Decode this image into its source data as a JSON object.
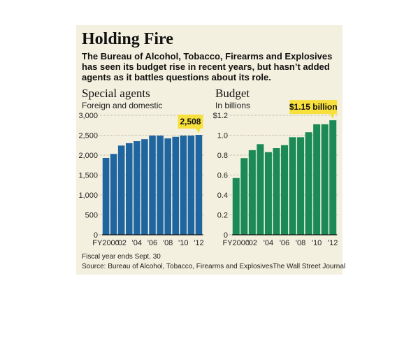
{
  "title": "Holding Fire",
  "intro": "The Bureau of Alcohol, Tobacco, Firearms and Explosives has seen its budget rise in recent years, but hasn’t added agents as it battles questions about its role.",
  "note": "Fiscal year ends Sept. 30",
  "source": "Source: Bureau of Alcohol, Tobacco, Firearms and Explosives",
  "credit": "The Wall Street Journal",
  "colors": {
    "panel": "#f4f0df",
    "agents_bar": "#1f66a0",
    "budget_bar": "#1b8a57",
    "callout": "#f7e03c",
    "grid": "#bdb8a8"
  },
  "chart_data": [
    {
      "type": "bar",
      "title": "Special agents",
      "subtitle": "Foreign and domestic",
      "categories": [
        "FY2000",
        "'01",
        "'02",
        "'03",
        "'04",
        "'05",
        "'06",
        "'07",
        "'08",
        "'09",
        "'10",
        "'11",
        "'12"
      ],
      "x_tick_labels": [
        "FY2000",
        "",
        "'02",
        "",
        "'04",
        "",
        "'06",
        "",
        "'08",
        "",
        "'10",
        "",
        "'12"
      ],
      "values": [
        1930,
        2030,
        2240,
        2300,
        2350,
        2400,
        2490,
        2490,
        2420,
        2460,
        2490,
        2490,
        2508
      ],
      "ylim": [
        0,
        3000
      ],
      "y_ticks": [
        0,
        500,
        1000,
        1500,
        2000,
        2500,
        3000
      ],
      "y_tick_labels": [
        "0",
        "500",
        "1,000",
        "1,500",
        "2,000",
        "2,500",
        "3,000"
      ],
      "callout": {
        "label": "2,508",
        "category": "'12"
      },
      "grid": true
    },
    {
      "type": "bar",
      "title": "Budget",
      "subtitle": "In billions",
      "categories": [
        "FY2000",
        "'01",
        "'02",
        "'03",
        "'04",
        "'05",
        "'06",
        "'07",
        "'08",
        "'09",
        "'10",
        "'11",
        "'12"
      ],
      "x_tick_labels": [
        "FY2000",
        "",
        "'02",
        "",
        "'04",
        "",
        "'06",
        "",
        "'08",
        "",
        "'10",
        "",
        "'12"
      ],
      "values": [
        0.57,
        0.77,
        0.85,
        0.91,
        0.83,
        0.87,
        0.9,
        0.98,
        0.98,
        1.03,
        1.11,
        1.11,
        1.15
      ],
      "ylim": [
        0,
        1.2
      ],
      "y_ticks": [
        0,
        0.2,
        0.4,
        0.6,
        0.8,
        1.0,
        1.2
      ],
      "y_tick_labels": [
        "0",
        "0.2",
        "0.4",
        "0.6",
        "0.8",
        "1.0",
        "$1.2"
      ],
      "callout": {
        "label": "$1.15 billion",
        "category": "'12"
      },
      "grid": true
    }
  ]
}
